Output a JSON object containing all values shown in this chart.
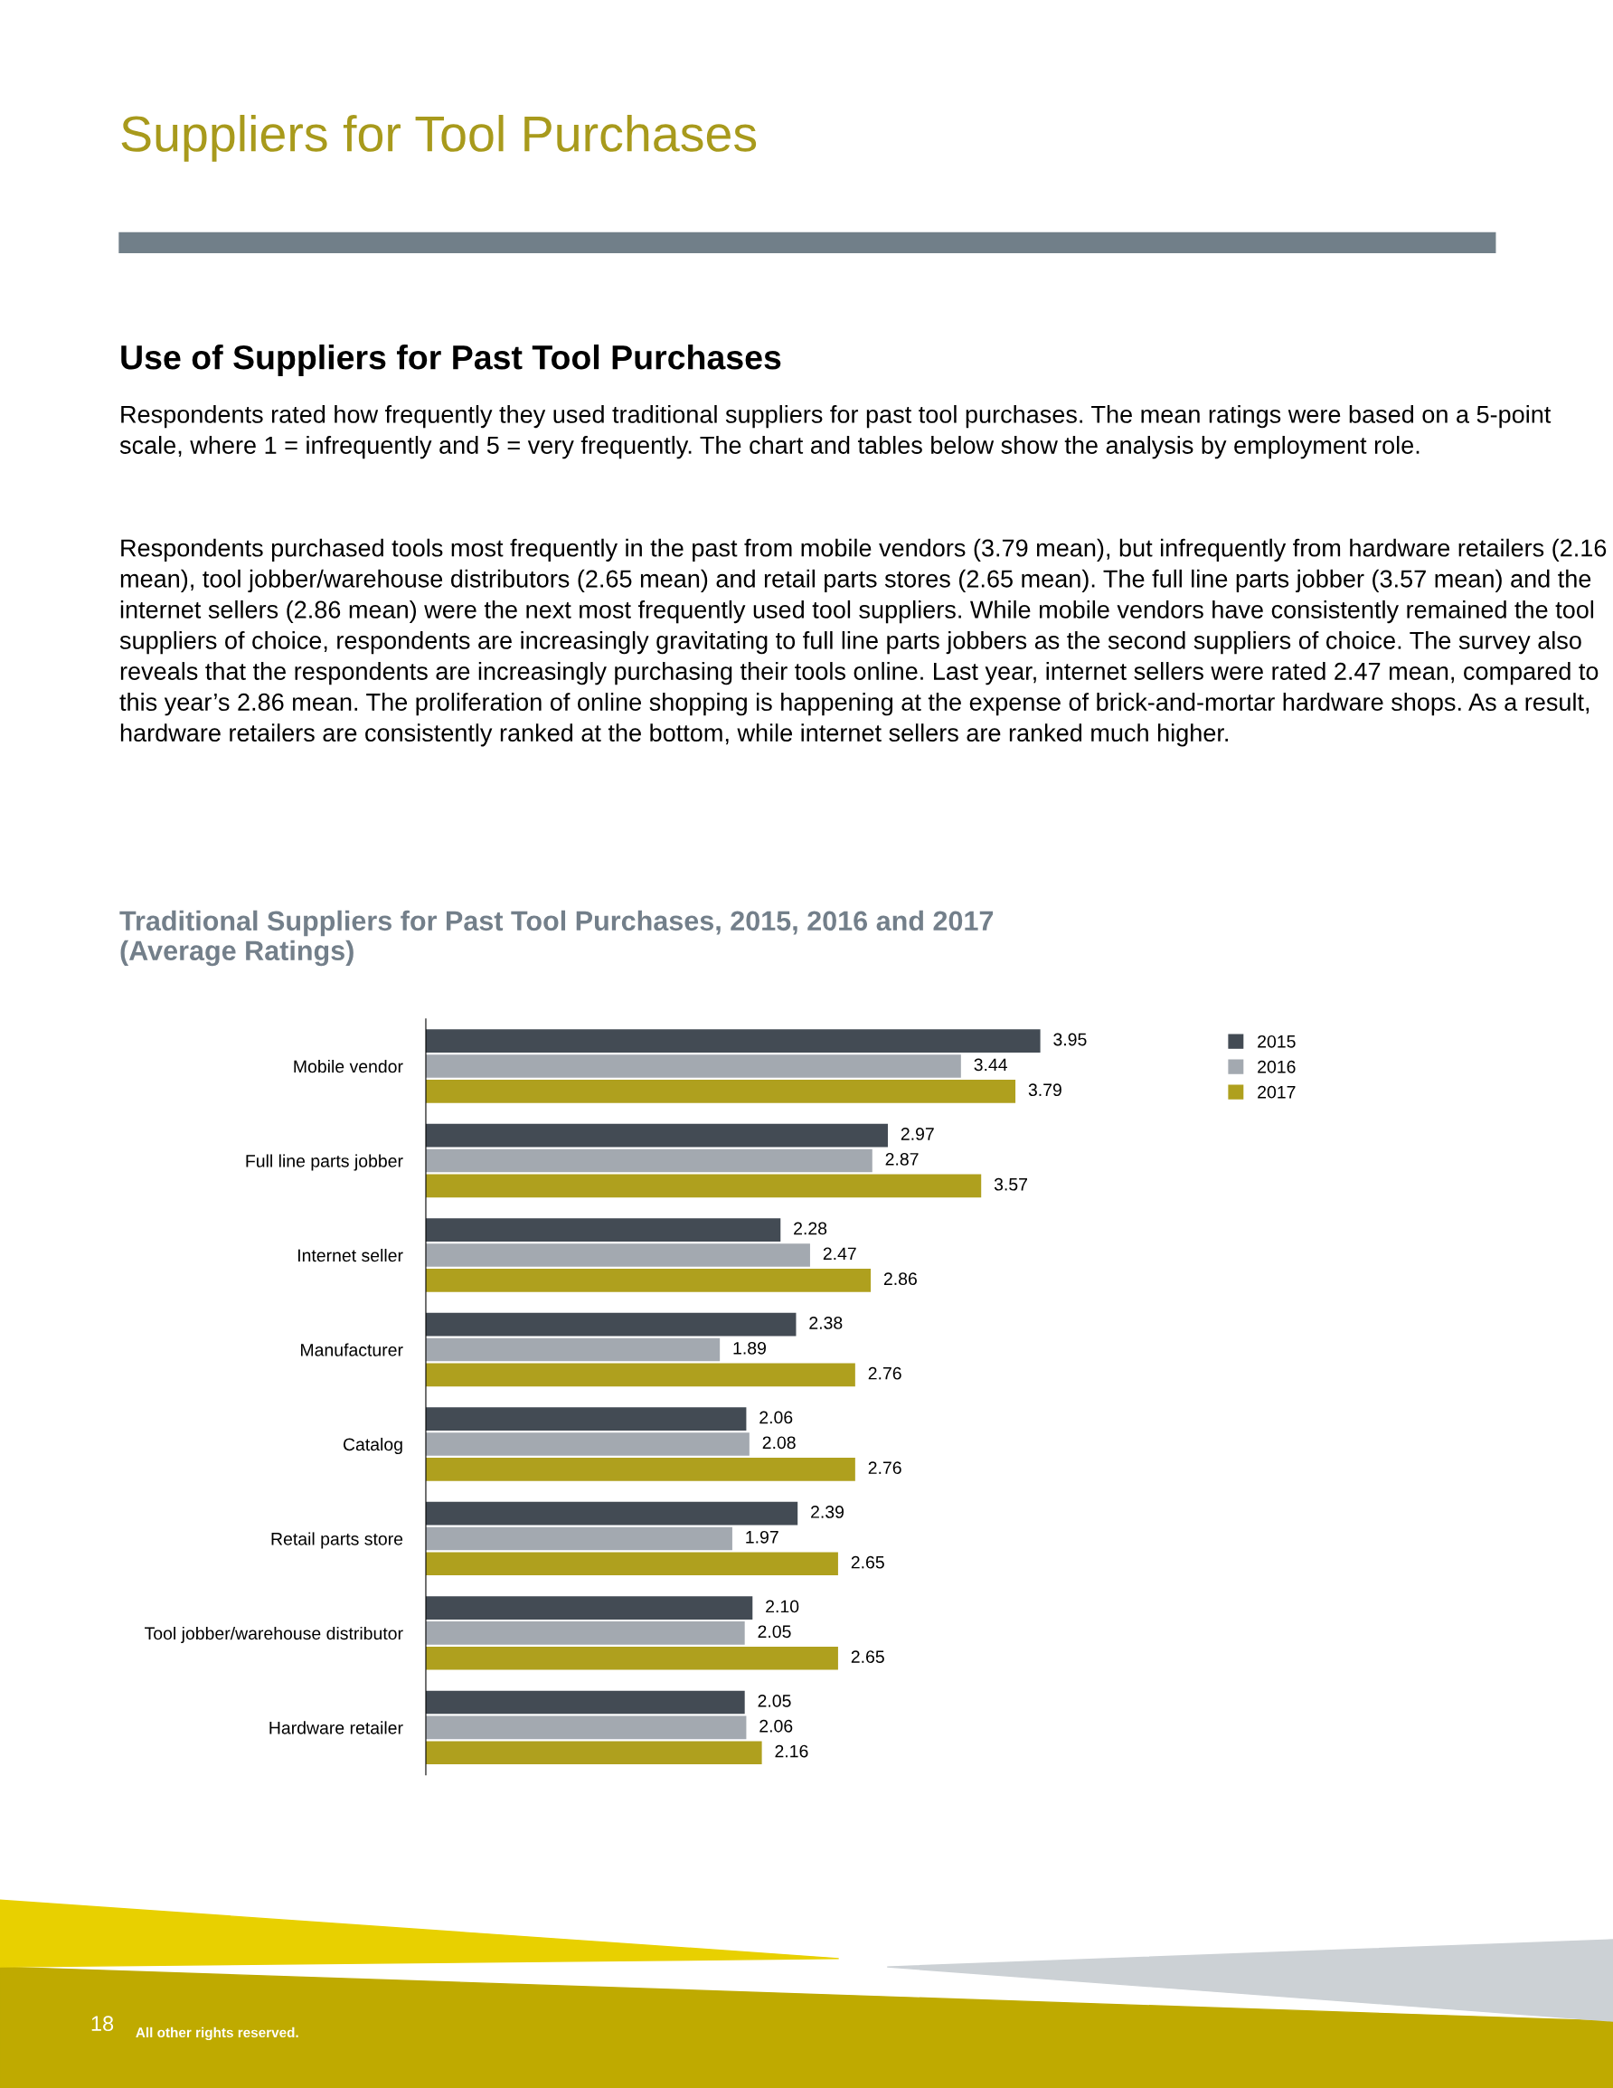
{
  "chart_data": {
    "type": "bar",
    "orientation": "horizontal",
    "title": "Suppliers for Tool Purchases",
    "subtitle": "Use of Suppliers for Past Tool Purchases",
    "annotations": [
      "Respondents rated how frequently they used traditional suppliers for past tool purchases. The mean ratings were based on a 5-point scale, where 1 = infrequently and 5 = very frequently. The chart and tables below show the analysis by employment role.",
      "Respondents purchased tools most frequently in the past from mobile vendors (3.79 mean), but infrequently from hardware retailers (2.16 mean), tool jobber/warehouse distributors (2.65 mean) and retail parts stores (2.65 mean). The full line parts jobber (3.57 mean) and the internet sellers (2.86 mean) were the next most frequently used tool suppliers. While mobile vendors have consistently remained the tool suppliers of choice, respondents are increasingly gravitating to full line parts jobbers as the second suppliers of choice. The survey also reveals that the respondents are increasingly purchasing their tools online. Last year, internet sellers were rated 2.47 mean, compared to this year’s 2.86 mean. The proliferation of online shopping is happening at the expense of brick-and-mortar hardware shops. As a result, hardware retailers are consistently ranked at the bottom, while internet sellers are ranked much higher.",
      "Traditional Suppliers for Past Tool Purchases, 2015, 2016 and 2017\n(Average Ratings)",
      "18",
      "All other rights reserved."
    ],
    "categories": [
      "Mobile vendor",
      "Full line parts jobber",
      "Internet seller",
      "Manufacturer",
      "Catalog",
      "Retail parts store",
      "Tool jobber/warehouse distributor",
      "Hardware retailer"
    ],
    "series": [
      {
        "name": "2015",
        "color": "#434b54",
        "values": [
          3.95,
          2.97,
          2.28,
          2.38,
          2.06,
          2.39,
          2.1,
          2.05
        ],
        "value_labels": [
          "3.95",
          "2.97",
          "2.28",
          "2.38",
          "2.06",
          "2.39",
          "2.10",
          "2.05"
        ]
      },
      {
        "name": "2016",
        "color": "#a3a9b0",
        "values": [
          3.44,
          2.87,
          2.47,
          1.89,
          2.08,
          1.97,
          2.05,
          2.06
        ],
        "value_labels": [
          "3.44",
          "2.87",
          "2.47",
          "1.89",
          "2.08",
          "1.97",
          "2.05",
          "2.06"
        ]
      },
      {
        "name": "2017",
        "color": "#afa01e",
        "values": [
          3.79,
          3.57,
          2.86,
          2.76,
          2.76,
          2.65,
          2.65,
          2.16
        ],
        "value_labels": [
          "3.79",
          "3.57",
          "2.86",
          "2.76",
          "2.76",
          "2.65",
          "2.65",
          "2.16"
        ]
      }
    ],
    "legend": "top right",
    "grid": false
  }
}
